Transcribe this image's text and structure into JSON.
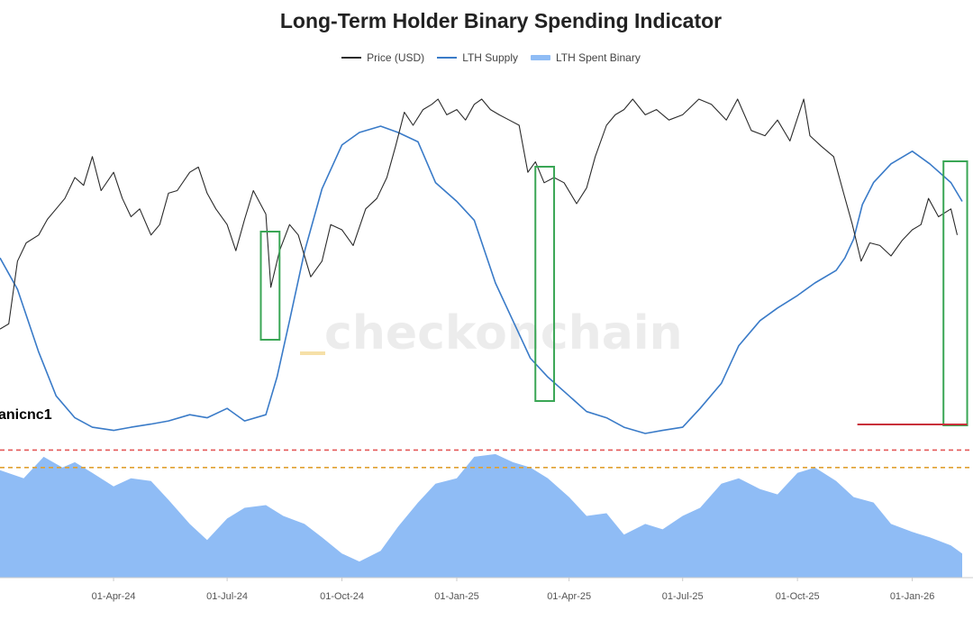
{
  "chart_data": {
    "type": "line",
    "title": "Long-Term Holder Binary Spending Indicator",
    "legend": [
      {
        "name": "Price (USD)",
        "color": "#2b2b2b",
        "style": "line"
      },
      {
        "name": "LTH Supply",
        "color": "#3a7bc8",
        "style": "line"
      },
      {
        "name": "LTH Spent Binary",
        "color": "#8fbcf5",
        "style": "area"
      }
    ],
    "legend_placement": "top-center",
    "watermark": "checkonchain",
    "author": "anicnc1",
    "x_ticks": [
      "01-Apr-24",
      "01-Jul-24",
      "01-Oct-24",
      "01-Jan-25",
      "01-Apr-25",
      "01-Jul-25",
      "01-Oct-25",
      "01-Jan-26"
    ],
    "x_range": [
      "2024-01-01",
      "2026-02-10"
    ],
    "series": [
      {
        "name": "Price (USD)",
        "color": "#2b2b2b",
        "points": [
          [
            "2024-01-01",
            0.88
          ],
          [
            "2024-01-08",
            0.86
          ],
          [
            "2024-01-15",
            0.62
          ],
          [
            "2024-01-22",
            0.55
          ],
          [
            "2024-02-01",
            0.52
          ],
          [
            "2024-02-08",
            0.46
          ],
          [
            "2024-02-15",
            0.42
          ],
          [
            "2024-02-22",
            0.38
          ],
          [
            "2024-03-01",
            0.3
          ],
          [
            "2024-03-08",
            0.33
          ],
          [
            "2024-03-15",
            0.22
          ],
          [
            "2024-03-22",
            0.35
          ],
          [
            "2024-04-01",
            0.28
          ],
          [
            "2024-04-08",
            0.38
          ],
          [
            "2024-04-15",
            0.45
          ],
          [
            "2024-04-22",
            0.42
          ],
          [
            "2024-05-01",
            0.52
          ],
          [
            "2024-05-08",
            0.48
          ],
          [
            "2024-05-15",
            0.36
          ],
          [
            "2024-05-22",
            0.35
          ],
          [
            "2024-06-01",
            0.28
          ],
          [
            "2024-06-08",
            0.26
          ],
          [
            "2024-06-15",
            0.36
          ],
          [
            "2024-06-22",
            0.42
          ],
          [
            "2024-07-01",
            0.48
          ],
          [
            "2024-07-08",
            0.58
          ],
          [
            "2024-07-15",
            0.46
          ],
          [
            "2024-07-22",
            0.35
          ],
          [
            "2024-08-01",
            0.44
          ],
          [
            "2024-08-05",
            0.72
          ],
          [
            "2024-08-12",
            0.58
          ],
          [
            "2024-08-20",
            0.48
          ],
          [
            "2024-08-27",
            0.52
          ],
          [
            "2024-09-06",
            0.68
          ],
          [
            "2024-09-15",
            0.62
          ],
          [
            "2024-09-22",
            0.48
          ],
          [
            "2024-10-01",
            0.5
          ],
          [
            "2024-10-10",
            0.56
          ],
          [
            "2024-10-20",
            0.42
          ],
          [
            "2024-10-29",
            0.38
          ],
          [
            "2024-11-06",
            0.3
          ],
          [
            "2024-11-13",
            0.18
          ],
          [
            "2024-11-20",
            0.05
          ],
          [
            "2024-11-27",
            0.1
          ],
          [
            "2024-12-05",
            0.04
          ],
          [
            "2024-12-12",
            0.02
          ],
          [
            "2024-12-17",
            0.0
          ],
          [
            "2024-12-24",
            0.06
          ],
          [
            "2025-01-01",
            0.04
          ],
          [
            "2025-01-08",
            0.08
          ],
          [
            "2025-01-15",
            0.02
          ],
          [
            "2025-01-21",
            0.0
          ],
          [
            "2025-01-28",
            0.04
          ],
          [
            "2025-02-04",
            0.06
          ],
          [
            "2025-02-12",
            0.08
          ],
          [
            "2025-02-20",
            0.1
          ],
          [
            "2025-02-27",
            0.28
          ],
          [
            "2025-03-05",
            0.24
          ],
          [
            "2025-03-12",
            0.32
          ],
          [
            "2025-03-20",
            0.3
          ],
          [
            "2025-03-28",
            0.32
          ],
          [
            "2025-04-07",
            0.4
          ],
          [
            "2025-04-15",
            0.34
          ],
          [
            "2025-04-22",
            0.22
          ],
          [
            "2025-05-01",
            0.1
          ],
          [
            "2025-05-08",
            0.06
          ],
          [
            "2025-05-15",
            0.04
          ],
          [
            "2025-05-22",
            0.0
          ],
          [
            "2025-06-01",
            0.06
          ],
          [
            "2025-06-10",
            0.04
          ],
          [
            "2025-06-20",
            0.08
          ],
          [
            "2025-07-01",
            0.06
          ],
          [
            "2025-07-14",
            0.0
          ],
          [
            "2025-07-24",
            0.02
          ],
          [
            "2025-08-05",
            0.08
          ],
          [
            "2025-08-14",
            0.0
          ],
          [
            "2025-08-25",
            0.12
          ],
          [
            "2025-09-05",
            0.14
          ],
          [
            "2025-09-15",
            0.08
          ],
          [
            "2025-09-25",
            0.16
          ],
          [
            "2025-10-06",
            0.0
          ],
          [
            "2025-10-11",
            0.14
          ],
          [
            "2025-10-20",
            0.18
          ],
          [
            "2025-10-30",
            0.22
          ],
          [
            "2025-11-07",
            0.36
          ],
          [
            "2025-11-14",
            0.48
          ],
          [
            "2025-11-21",
            0.62
          ],
          [
            "2025-11-28",
            0.55
          ],
          [
            "2025-12-06",
            0.56
          ],
          [
            "2025-12-15",
            0.6
          ],
          [
            "2025-12-24",
            0.54
          ],
          [
            "2026-01-01",
            0.5
          ],
          [
            "2026-01-08",
            0.48
          ],
          [
            "2026-01-14",
            0.38
          ],
          [
            "2026-01-22",
            0.45
          ],
          [
            "2026-02-01",
            0.42
          ],
          [
            "2026-02-06",
            0.52
          ]
        ]
      },
      {
        "name": "LTH Supply",
        "color": "#3a7bc8",
        "points": [
          [
            "2024-01-01",
            0.42
          ],
          [
            "2024-01-15",
            0.52
          ],
          [
            "2024-02-01",
            0.72
          ],
          [
            "2024-02-15",
            0.86
          ],
          [
            "2024-03-01",
            0.93
          ],
          [
            "2024-03-15",
            0.96
          ],
          [
            "2024-04-01",
            0.97
          ],
          [
            "2024-04-15",
            0.96
          ],
          [
            "2024-05-01",
            0.95
          ],
          [
            "2024-05-15",
            0.94
          ],
          [
            "2024-06-01",
            0.92
          ],
          [
            "2024-06-15",
            0.93
          ],
          [
            "2024-07-01",
            0.9
          ],
          [
            "2024-07-15",
            0.94
          ],
          [
            "2024-08-01",
            0.92
          ],
          [
            "2024-08-10",
            0.8
          ],
          [
            "2024-08-20",
            0.62
          ],
          [
            "2024-09-01",
            0.4
          ],
          [
            "2024-09-15",
            0.2
          ],
          [
            "2024-10-01",
            0.06
          ],
          [
            "2024-10-15",
            0.02
          ],
          [
            "2024-11-01",
            0.0
          ],
          [
            "2024-11-15",
            0.02
          ],
          [
            "2024-12-01",
            0.05
          ],
          [
            "2024-12-15",
            0.18
          ],
          [
            "2025-01-01",
            0.24
          ],
          [
            "2025-01-15",
            0.3
          ],
          [
            "2025-02-01",
            0.5
          ],
          [
            "2025-02-15",
            0.62
          ],
          [
            "2025-03-01",
            0.74
          ],
          [
            "2025-03-15",
            0.8
          ],
          [
            "2025-04-01",
            0.86
          ],
          [
            "2025-04-15",
            0.91
          ],
          [
            "2025-05-01",
            0.93
          ],
          [
            "2025-05-15",
            0.96
          ],
          [
            "2025-06-01",
            0.98
          ],
          [
            "2025-06-15",
            0.97
          ],
          [
            "2025-07-01",
            0.96
          ],
          [
            "2025-07-15",
            0.9
          ],
          [
            "2025-08-01",
            0.82
          ],
          [
            "2025-08-15",
            0.7
          ],
          [
            "2025-09-01",
            0.62
          ],
          [
            "2025-09-15",
            0.58
          ],
          [
            "2025-10-01",
            0.54
          ],
          [
            "2025-10-15",
            0.5
          ],
          [
            "2025-11-01",
            0.46
          ],
          [
            "2025-11-08",
            0.42
          ],
          [
            "2025-11-15",
            0.36
          ],
          [
            "2025-11-22",
            0.25
          ],
          [
            "2025-12-01",
            0.18
          ],
          [
            "2025-12-15",
            0.12
          ],
          [
            "2026-01-01",
            0.08
          ],
          [
            "2026-01-15",
            0.12
          ],
          [
            "2026-02-01",
            0.18
          ],
          [
            "2026-02-10",
            0.24
          ]
        ]
      },
      {
        "name": "LTH Spent Binary",
        "color": "#8fbcf5",
        "type": "area",
        "points": [
          [
            "2024-01-01",
            0.8
          ],
          [
            "2024-01-20",
            0.74
          ],
          [
            "2024-02-05",
            0.9
          ],
          [
            "2024-02-20",
            0.82
          ],
          [
            "2024-03-01",
            0.86
          ],
          [
            "2024-03-15",
            0.78
          ],
          [
            "2024-04-01",
            0.68
          ],
          [
            "2024-04-15",
            0.74
          ],
          [
            "2024-05-01",
            0.72
          ],
          [
            "2024-05-15",
            0.58
          ],
          [
            "2024-06-01",
            0.4
          ],
          [
            "2024-06-15",
            0.28
          ],
          [
            "2024-07-01",
            0.44
          ],
          [
            "2024-07-15",
            0.52
          ],
          [
            "2024-08-01",
            0.54
          ],
          [
            "2024-08-15",
            0.46
          ],
          [
            "2024-09-01",
            0.4
          ],
          [
            "2024-09-15",
            0.3
          ],
          [
            "2024-10-01",
            0.18
          ],
          [
            "2024-10-15",
            0.12
          ],
          [
            "2024-11-01",
            0.2
          ],
          [
            "2024-11-15",
            0.38
          ],
          [
            "2024-12-01",
            0.56
          ],
          [
            "2024-12-15",
            0.7
          ],
          [
            "2025-01-01",
            0.74
          ],
          [
            "2025-01-15",
            0.9
          ],
          [
            "2025-02-01",
            0.92
          ],
          [
            "2025-02-15",
            0.86
          ],
          [
            "2025-03-01",
            0.82
          ],
          [
            "2025-03-15",
            0.74
          ],
          [
            "2025-04-01",
            0.6
          ],
          [
            "2025-04-15",
            0.46
          ],
          [
            "2025-05-01",
            0.48
          ],
          [
            "2025-05-15",
            0.32
          ],
          [
            "2025-06-01",
            0.4
          ],
          [
            "2025-06-15",
            0.36
          ],
          [
            "2025-07-01",
            0.46
          ],
          [
            "2025-07-15",
            0.52
          ],
          [
            "2025-08-01",
            0.7
          ],
          [
            "2025-08-15",
            0.74
          ],
          [
            "2025-09-01",
            0.66
          ],
          [
            "2025-09-15",
            0.62
          ],
          [
            "2025-10-01",
            0.78
          ],
          [
            "2025-10-15",
            0.82
          ],
          [
            "2025-11-01",
            0.72
          ],
          [
            "2025-11-15",
            0.6
          ],
          [
            "2025-12-01",
            0.56
          ],
          [
            "2025-12-15",
            0.4
          ],
          [
            "2026-01-01",
            0.34
          ],
          [
            "2026-01-15",
            0.3
          ],
          [
            "2026-02-01",
            0.24
          ],
          [
            "2026-02-10",
            0.18
          ]
        ]
      }
    ],
    "threshold_lines": [
      {
        "name": "upper threshold",
        "color": "#e45858",
        "style": "dashed",
        "value": 0.95
      },
      {
        "name": "lower threshold",
        "color": "#e0a030",
        "style": "dashed",
        "value": 0.82
      }
    ],
    "highlight_boxes": [
      {
        "name": "aug-2024 box",
        "start": "2024-07-28",
        "end": "2024-08-12",
        "color": "#3aa655"
      },
      {
        "name": "mar-2025 box",
        "start": "2025-03-05",
        "end": "2025-03-20",
        "color": "#3aa655"
      },
      {
        "name": "feb-2026 box",
        "start": "2026-01-26",
        "end": "2026-02-14",
        "color": "#3aa655"
      }
    ],
    "support_line": {
      "name": "supply floor",
      "start": "2025-11-18",
      "end": "2026-02-14",
      "color": "#c8303a"
    }
  }
}
